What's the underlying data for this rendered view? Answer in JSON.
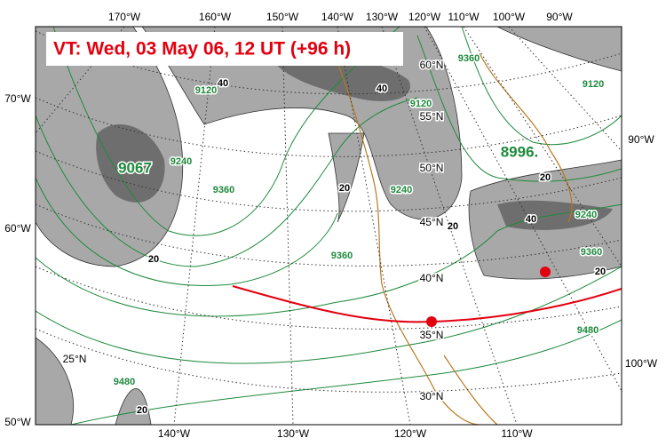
{
  "header": {
    "title": "VT:  Wed, 03 May 06, 12 UT (+96 h)"
  },
  "axes": {
    "top": [
      "170°W",
      "160°W",
      "150°W",
      "140°W",
      "130°W",
      "120°W",
      "110°W",
      "100°W",
      "90°W"
    ],
    "left": [
      "70°W",
      "60°W",
      "50°W"
    ],
    "right": [
      "90°W",
      "100°W"
    ],
    "bottom": [
      "140°W",
      "130°W",
      "120°W",
      "110°W"
    ]
  },
  "graticule_labels": [
    "60°N",
    "55°N",
    "50°N",
    "45°N",
    "40°N",
    "35°N",
    "30°N",
    "25°N"
  ],
  "height_labels": [
    "8996.",
    "9067"
  ],
  "contour_labels": [
    "9120",
    "9120",
    "9120",
    "9240",
    "9240",
    "9240",
    "9360",
    "9360",
    "9360",
    "9480",
    "9480",
    "9360"
  ],
  "shade_labels": [
    "40",
    "40",
    "20",
    "20",
    "20",
    "20",
    "40",
    "20",
    "20"
  ]
}
